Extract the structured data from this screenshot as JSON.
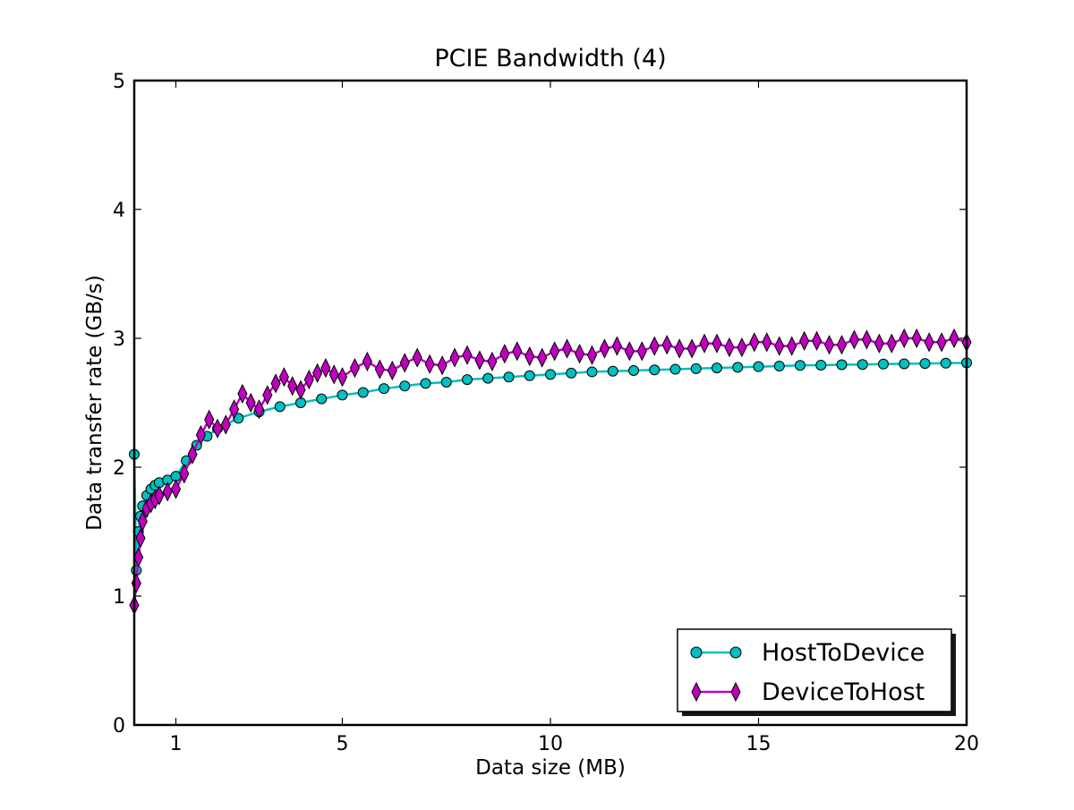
{
  "chart_data": {
    "type": "line",
    "title": "PCIE Bandwidth (4)",
    "xlabel": "Data size (MB)",
    "ylabel": "Data transfer rate (GB/s)",
    "xlim": [
      0,
      20
    ],
    "ylim": [
      0,
      5
    ],
    "xticks": [
      1,
      5,
      10,
      15,
      20
    ],
    "yticks": [
      0,
      1,
      2,
      3,
      4,
      5
    ],
    "grid": false,
    "legend_position": "lower-right",
    "series": [
      {
        "name": "HostToDevice",
        "color": "#00bfbf",
        "marker": "circle",
        "x": [
          0,
          0.05,
          0.1,
          0.15,
          0.2,
          0.3,
          0.4,
          0.5,
          0.6,
          0.8,
          1.0,
          1.25,
          1.5,
          1.75,
          2.0,
          2.5,
          3.0,
          3.5,
          4.0,
          4.5,
          5.0,
          5.5,
          6.0,
          6.5,
          7.0,
          7.5,
          8.0,
          8.5,
          9.0,
          9.5,
          10.0,
          10.5,
          11.0,
          11.5,
          12.0,
          12.5,
          13.0,
          13.5,
          14.0,
          14.5,
          15.0,
          15.5,
          16.0,
          16.5,
          17.0,
          17.5,
          18.0,
          18.5,
          19.0,
          19.5,
          20.0
        ],
        "y": [
          2.1,
          1.2,
          1.5,
          1.62,
          1.7,
          1.78,
          1.83,
          1.86,
          1.88,
          1.9,
          1.93,
          2.05,
          2.17,
          2.24,
          2.3,
          2.38,
          2.43,
          2.47,
          2.5,
          2.53,
          2.56,
          2.58,
          2.61,
          2.63,
          2.65,
          2.66,
          2.68,
          2.69,
          2.7,
          2.71,
          2.72,
          2.73,
          2.74,
          2.745,
          2.75,
          2.755,
          2.76,
          2.765,
          2.77,
          2.775,
          2.78,
          2.785,
          2.79,
          2.792,
          2.795,
          2.797,
          2.8,
          2.802,
          2.805,
          2.807,
          2.81
        ]
      },
      {
        "name": "DeviceToHost",
        "color": "#bf00bf",
        "marker": "diamond",
        "x": [
          0,
          0.05,
          0.1,
          0.15,
          0.2,
          0.3,
          0.4,
          0.5,
          0.6,
          0.8,
          1.0,
          1.2,
          1.4,
          1.6,
          1.8,
          2.0,
          2.2,
          2.4,
          2.6,
          2.8,
          3.0,
          3.2,
          3.4,
          3.6,
          3.8,
          4.0,
          4.2,
          4.4,
          4.6,
          4.8,
          5.0,
          5.3,
          5.6,
          5.9,
          6.2,
          6.5,
          6.8,
          7.1,
          7.4,
          7.7,
          8.0,
          8.3,
          8.6,
          8.9,
          9.2,
          9.5,
          9.8,
          10.1,
          10.4,
          10.7,
          11.0,
          11.3,
          11.6,
          11.9,
          12.2,
          12.5,
          12.8,
          13.1,
          13.4,
          13.7,
          14.0,
          14.3,
          14.6,
          14.9,
          15.2,
          15.5,
          15.8,
          16.1,
          16.4,
          16.7,
          17.0,
          17.3,
          17.6,
          17.9,
          18.2,
          18.5,
          18.8,
          19.1,
          19.4,
          19.7,
          20.0
        ],
        "y": [
          0.93,
          1.1,
          1.3,
          1.45,
          1.58,
          1.68,
          1.72,
          1.75,
          1.78,
          1.81,
          1.83,
          1.95,
          2.1,
          2.25,
          2.37,
          2.3,
          2.33,
          2.45,
          2.57,
          2.5,
          2.45,
          2.56,
          2.65,
          2.7,
          2.63,
          2.6,
          2.68,
          2.73,
          2.77,
          2.72,
          2.7,
          2.77,
          2.82,
          2.76,
          2.75,
          2.81,
          2.85,
          2.8,
          2.79,
          2.85,
          2.87,
          2.83,
          2.82,
          2.88,
          2.9,
          2.86,
          2.85,
          2.9,
          2.92,
          2.88,
          2.87,
          2.92,
          2.94,
          2.9,
          2.9,
          2.94,
          2.95,
          2.92,
          2.92,
          2.96,
          2.96,
          2.93,
          2.93,
          2.97,
          2.97,
          2.94,
          2.94,
          2.98,
          2.98,
          2.95,
          2.95,
          2.99,
          2.99,
          2.96,
          2.96,
          3.0,
          3.0,
          2.97,
          2.97,
          3.0,
          2.97
        ]
      }
    ]
  }
}
